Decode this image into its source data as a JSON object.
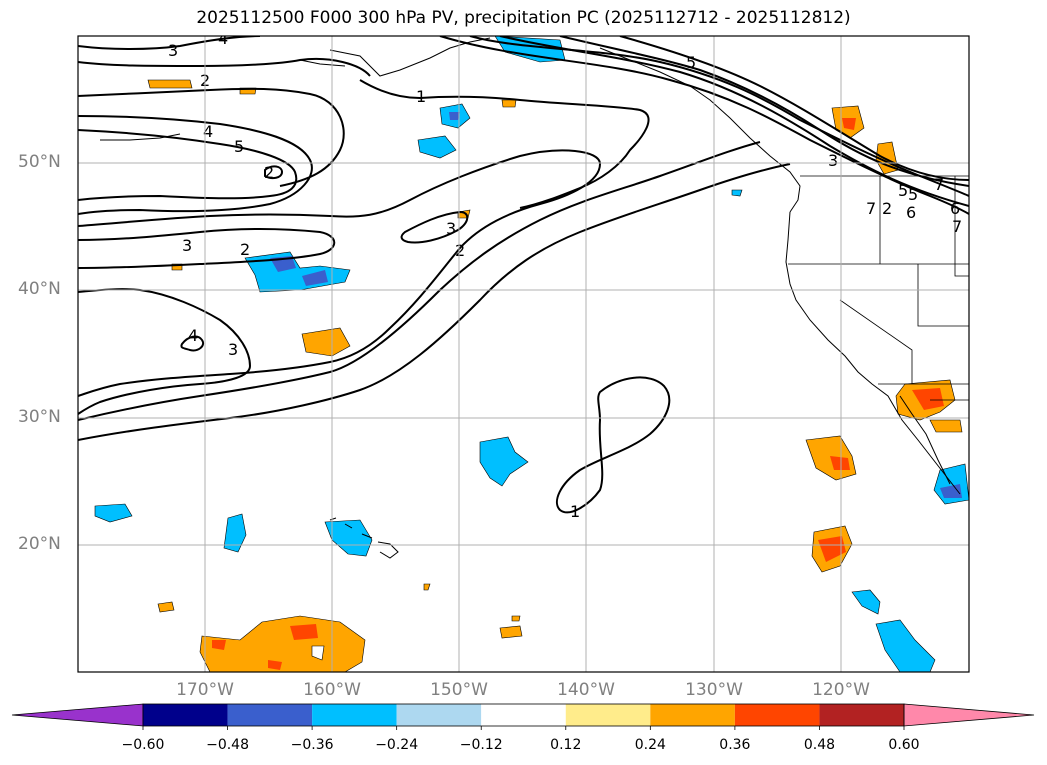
{
  "title": "2025112500 F000 300 hPa PV, precipitation PC (2025112712 - 2025112812)",
  "map": {
    "region": "North Pacific / US West Coast",
    "lon_range": [
      -180,
      -110
    ],
    "lat_range": [
      10,
      60
    ],
    "lat_labels": [
      "50°N",
      "40°N",
      "30°N",
      "20°N"
    ],
    "lon_labels": [
      "170°W",
      "160°W",
      "150°W",
      "140°W",
      "130°W",
      "120°W"
    ],
    "gridlines": true,
    "contour_color": "#000000",
    "contour_labels": [
      "3",
      "4",
      "2",
      "1",
      "5",
      "4",
      "5",
      "2",
      "3",
      "2",
      "3",
      "2",
      "4",
      "3",
      "1",
      "5",
      "7",
      "3",
      "5",
      "7",
      "6",
      "7",
      "2",
      "6"
    ]
  },
  "colorbar": {
    "orientation": "horizontal",
    "extend": "both",
    "tick_labels": [
      "−0.60",
      "−0.48",
      "−0.36",
      "−0.24",
      "−0.12",
      "0.12",
      "0.24",
      "0.36",
      "0.48",
      "0.60"
    ],
    "colors": [
      "#9932cc",
      "#00008b",
      "#3a5fcd",
      "#00bfff",
      "#add8f0",
      "#ffffff",
      "#ffec8b",
      "#ffa500",
      "#ff4500",
      "#b22222",
      "#ff88aa"
    ]
  }
}
